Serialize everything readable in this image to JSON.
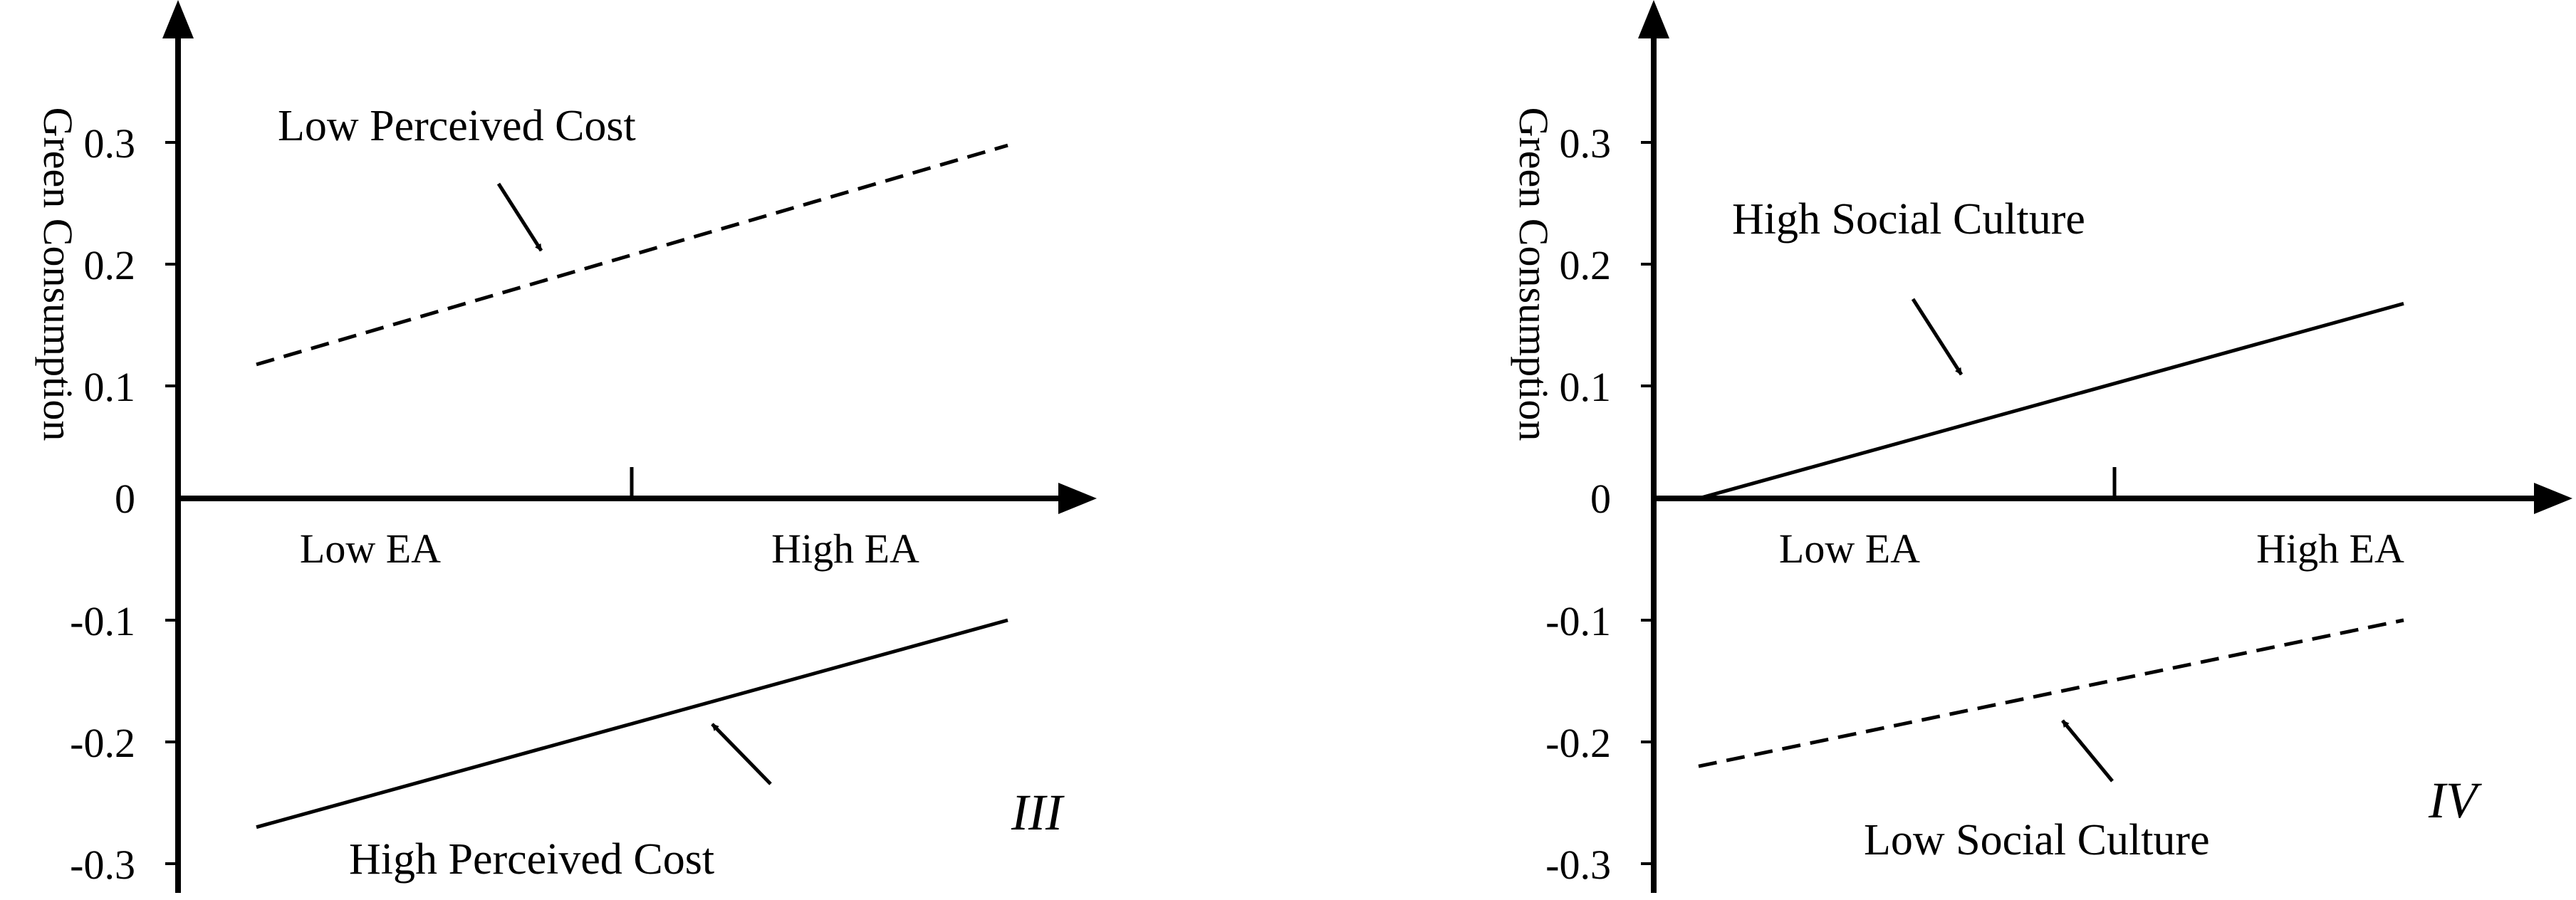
{
  "chart_data": [
    {
      "type": "line",
      "panel_label": "III",
      "ylabel": "Green Consumption",
      "categories": [
        "Low EA",
        "High EA"
      ],
      "ylim": [
        -0.3,
        0.3
      ],
      "yticks": [
        "0.3",
        "0.2",
        "0.1",
        "0",
        "-0.1",
        "-0.2",
        "-0.3"
      ],
      "series": [
        {
          "name": "Low Perceived Cost",
          "style": "dashed",
          "values": [
            0.11,
            0.29
          ]
        },
        {
          "name": "High Perceived Cost",
          "style": "solid",
          "values": [
            -0.27,
            -0.1
          ]
        }
      ]
    },
    {
      "type": "line",
      "panel_label": "IV",
      "ylabel": "Green Consumption",
      "categories": [
        "Low EA",
        "High EA"
      ],
      "ylim": [
        -0.3,
        0.3
      ],
      "yticks": [
        "0.3",
        "0.2",
        "0.1",
        "0",
        "-0.1",
        "-0.2",
        "-0.3"
      ],
      "series": [
        {
          "name": "High Social Culture",
          "style": "solid",
          "values": [
            0.0,
            0.16
          ]
        },
        {
          "name": "Low Social Culture",
          "style": "dashed",
          "values": [
            -0.22,
            -0.1
          ]
        }
      ]
    }
  ]
}
